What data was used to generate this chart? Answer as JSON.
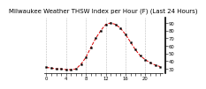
{
  "title": "Milwaukee Weather THSW Index per Hour (F) (Last 24 Hours)",
  "hours": [
    0,
    1,
    2,
    3,
    4,
    5,
    6,
    7,
    8,
    9,
    10,
    11,
    12,
    13,
    14,
    15,
    16,
    17,
    18,
    19,
    20,
    21,
    22,
    23
  ],
  "values": [
    32,
    31,
    30,
    30,
    29,
    29,
    30,
    36,
    45,
    58,
    70,
    80,
    88,
    90,
    88,
    83,
    75,
    65,
    55,
    47,
    42,
    38,
    35,
    33
  ],
  "line_color": "#dd0000",
  "marker_color": "#000000",
  "bg_color": "#ffffff",
  "grid_color": "#bbbbbb",
  "ylim": [
    25,
    97
  ],
  "yticks_right": [
    30,
    40,
    50,
    60,
    70,
    80,
    90
  ],
  "grid_hours": [
    0,
    4,
    8,
    12,
    16,
    20
  ],
  "title_fontsize": 5.0,
  "tick_fontsize": 3.8
}
